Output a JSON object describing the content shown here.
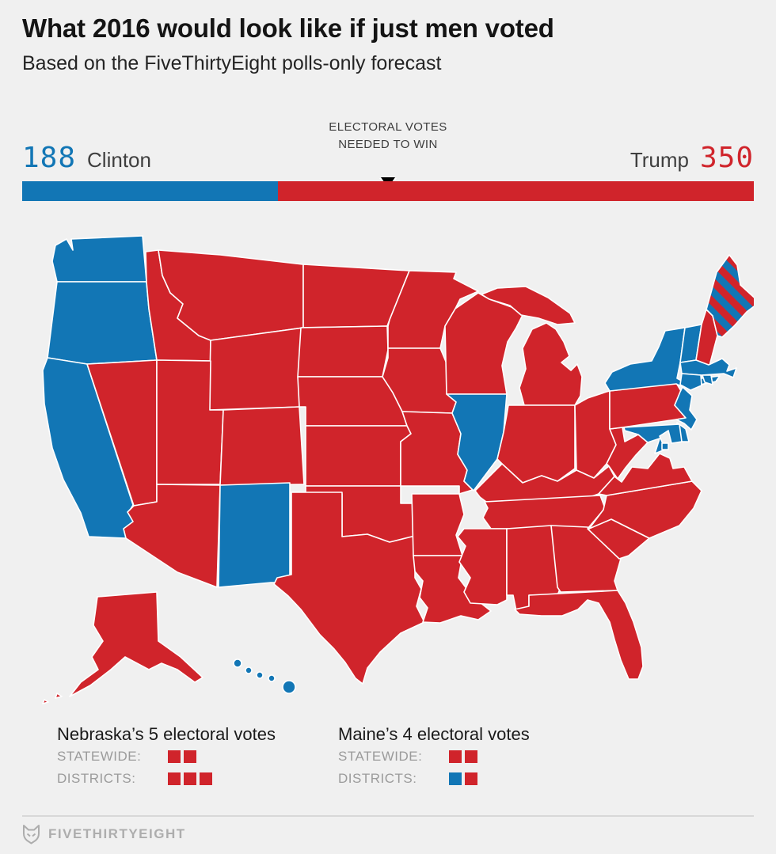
{
  "header": {
    "title": "What 2016 would look like if just men voted",
    "subtitle": "Based on the FiveThirtyEight polls-only forecast"
  },
  "ev_bar": {
    "clinton_votes": 188,
    "clinton_label": "Clinton",
    "trump_votes": 350,
    "trump_label": "Trump",
    "total": 538,
    "needed_to_win": 270,
    "center_label_line1": "ELECTORAL VOTES",
    "center_label_line2": "NEEDED TO WIN"
  },
  "colors": {
    "clinton": "#1276b5",
    "trump": "#d0242b",
    "background": "#f0f0f0"
  },
  "map": {
    "clinton_states": [
      "WA",
      "OR",
      "CA",
      "NM",
      "IL",
      "HI",
      "NY",
      "VT",
      "MA",
      "RI",
      "CT",
      "NJ",
      "DE",
      "MD",
      "DC"
    ],
    "trump_states": [
      "ID",
      "NV",
      "MT",
      "WY",
      "UT",
      "CO",
      "AZ",
      "ND",
      "SD",
      "NE",
      "KS",
      "OK",
      "TX",
      "MN",
      "IA",
      "MO",
      "AR",
      "LA",
      "WI",
      "MI",
      "IN",
      "OH",
      "KY",
      "TN",
      "MS",
      "AL",
      "GA",
      "FL",
      "SC",
      "NC",
      "VA",
      "WV",
      "PA",
      "NH",
      "AK"
    ],
    "split_states": [
      "ME"
    ]
  },
  "legend": {
    "blocks": [
      {
        "title": "Nebraska’s 5 electoral votes",
        "rows": [
          {
            "label": "STATEWIDE:",
            "squares": [
              "trump",
              "trump"
            ]
          },
          {
            "label": "DISTRICTS:",
            "squares": [
              "trump",
              "trump",
              "trump"
            ]
          }
        ]
      },
      {
        "title": "Maine’s 4 electoral votes",
        "rows": [
          {
            "label": "STATEWIDE:",
            "squares": [
              "trump",
              "trump"
            ]
          },
          {
            "label": "DISTRICTS:",
            "squares": [
              "clinton",
              "trump"
            ]
          }
        ]
      }
    ]
  },
  "footer": {
    "brand": "FIVETHIRTYEIGHT"
  },
  "chart_data": {
    "type": "choropleth_map",
    "title": "What 2016 would look like if just men voted",
    "subtitle": "Based on the FiveThirtyEight polls-only forecast",
    "electoral_votes": {
      "clinton": 188,
      "trump": 350,
      "total": 538,
      "needed_to_win": 270
    },
    "clinton_states": [
      "WA",
      "OR",
      "CA",
      "NM",
      "IL",
      "HI",
      "NY",
      "VT",
      "MA",
      "RI",
      "CT",
      "NJ",
      "DE",
      "MD",
      "DC"
    ],
    "trump_states": [
      "ID",
      "NV",
      "MT",
      "WY",
      "UT",
      "CO",
      "AZ",
      "ND",
      "SD",
      "NE",
      "KS",
      "OK",
      "TX",
      "MN",
      "IA",
      "MO",
      "AR",
      "LA",
      "WI",
      "MI",
      "IN",
      "OH",
      "KY",
      "TN",
      "MS",
      "AL",
      "GA",
      "FL",
      "SC",
      "NC",
      "VA",
      "WV",
      "PA",
      "NH",
      "AK",
      "ME"
    ],
    "split_allocations": {
      "NE": {
        "statewide": [
          "trump",
          "trump"
        ],
        "districts": [
          "trump",
          "trump",
          "trump"
        ]
      },
      "ME": {
        "statewide": [
          "trump",
          "trump"
        ],
        "districts": [
          "clinton",
          "trump"
        ]
      }
    },
    "legend_position": "bottom",
    "marker": "electoral votes needed to win at center of bar"
  }
}
